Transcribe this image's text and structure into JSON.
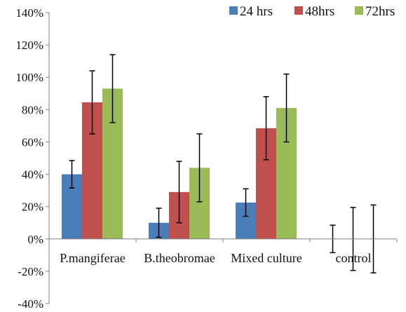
{
  "chart_data": {
    "type": "bar",
    "title": "",
    "xlabel": "",
    "ylabel": "",
    "categories": [
      "P.mangiferae",
      "B.theobromae",
      "Mixed culture",
      "control"
    ],
    "ylim": [
      -40,
      140
    ],
    "y_unit": "%",
    "y_ticks": [
      "140%",
      "120%",
      "100%",
      "80%",
      "60%",
      "40%",
      "20%",
      "0%",
      "-20%",
      "-40%"
    ],
    "legend_position": "top-right",
    "grid": false,
    "series": [
      {
        "name": "24 hrs",
        "color": "#4a7ebb",
        "values": [
          40,
          10,
          22.5,
          0
        ],
        "errors": [
          8.5,
          9,
          8.5,
          8.5
        ]
      },
      {
        "name": "48hrs",
        "color": "#c0504d",
        "values": [
          84.5,
          29,
          68.5,
          0
        ],
        "errors": [
          19.5,
          19,
          19.5,
          19.5
        ]
      },
      {
        "name": "72hrs",
        "color": "#9bbb59",
        "values": [
          93,
          44,
          81,
          0
        ],
        "errors": [
          21,
          21,
          21,
          21
        ]
      }
    ]
  }
}
